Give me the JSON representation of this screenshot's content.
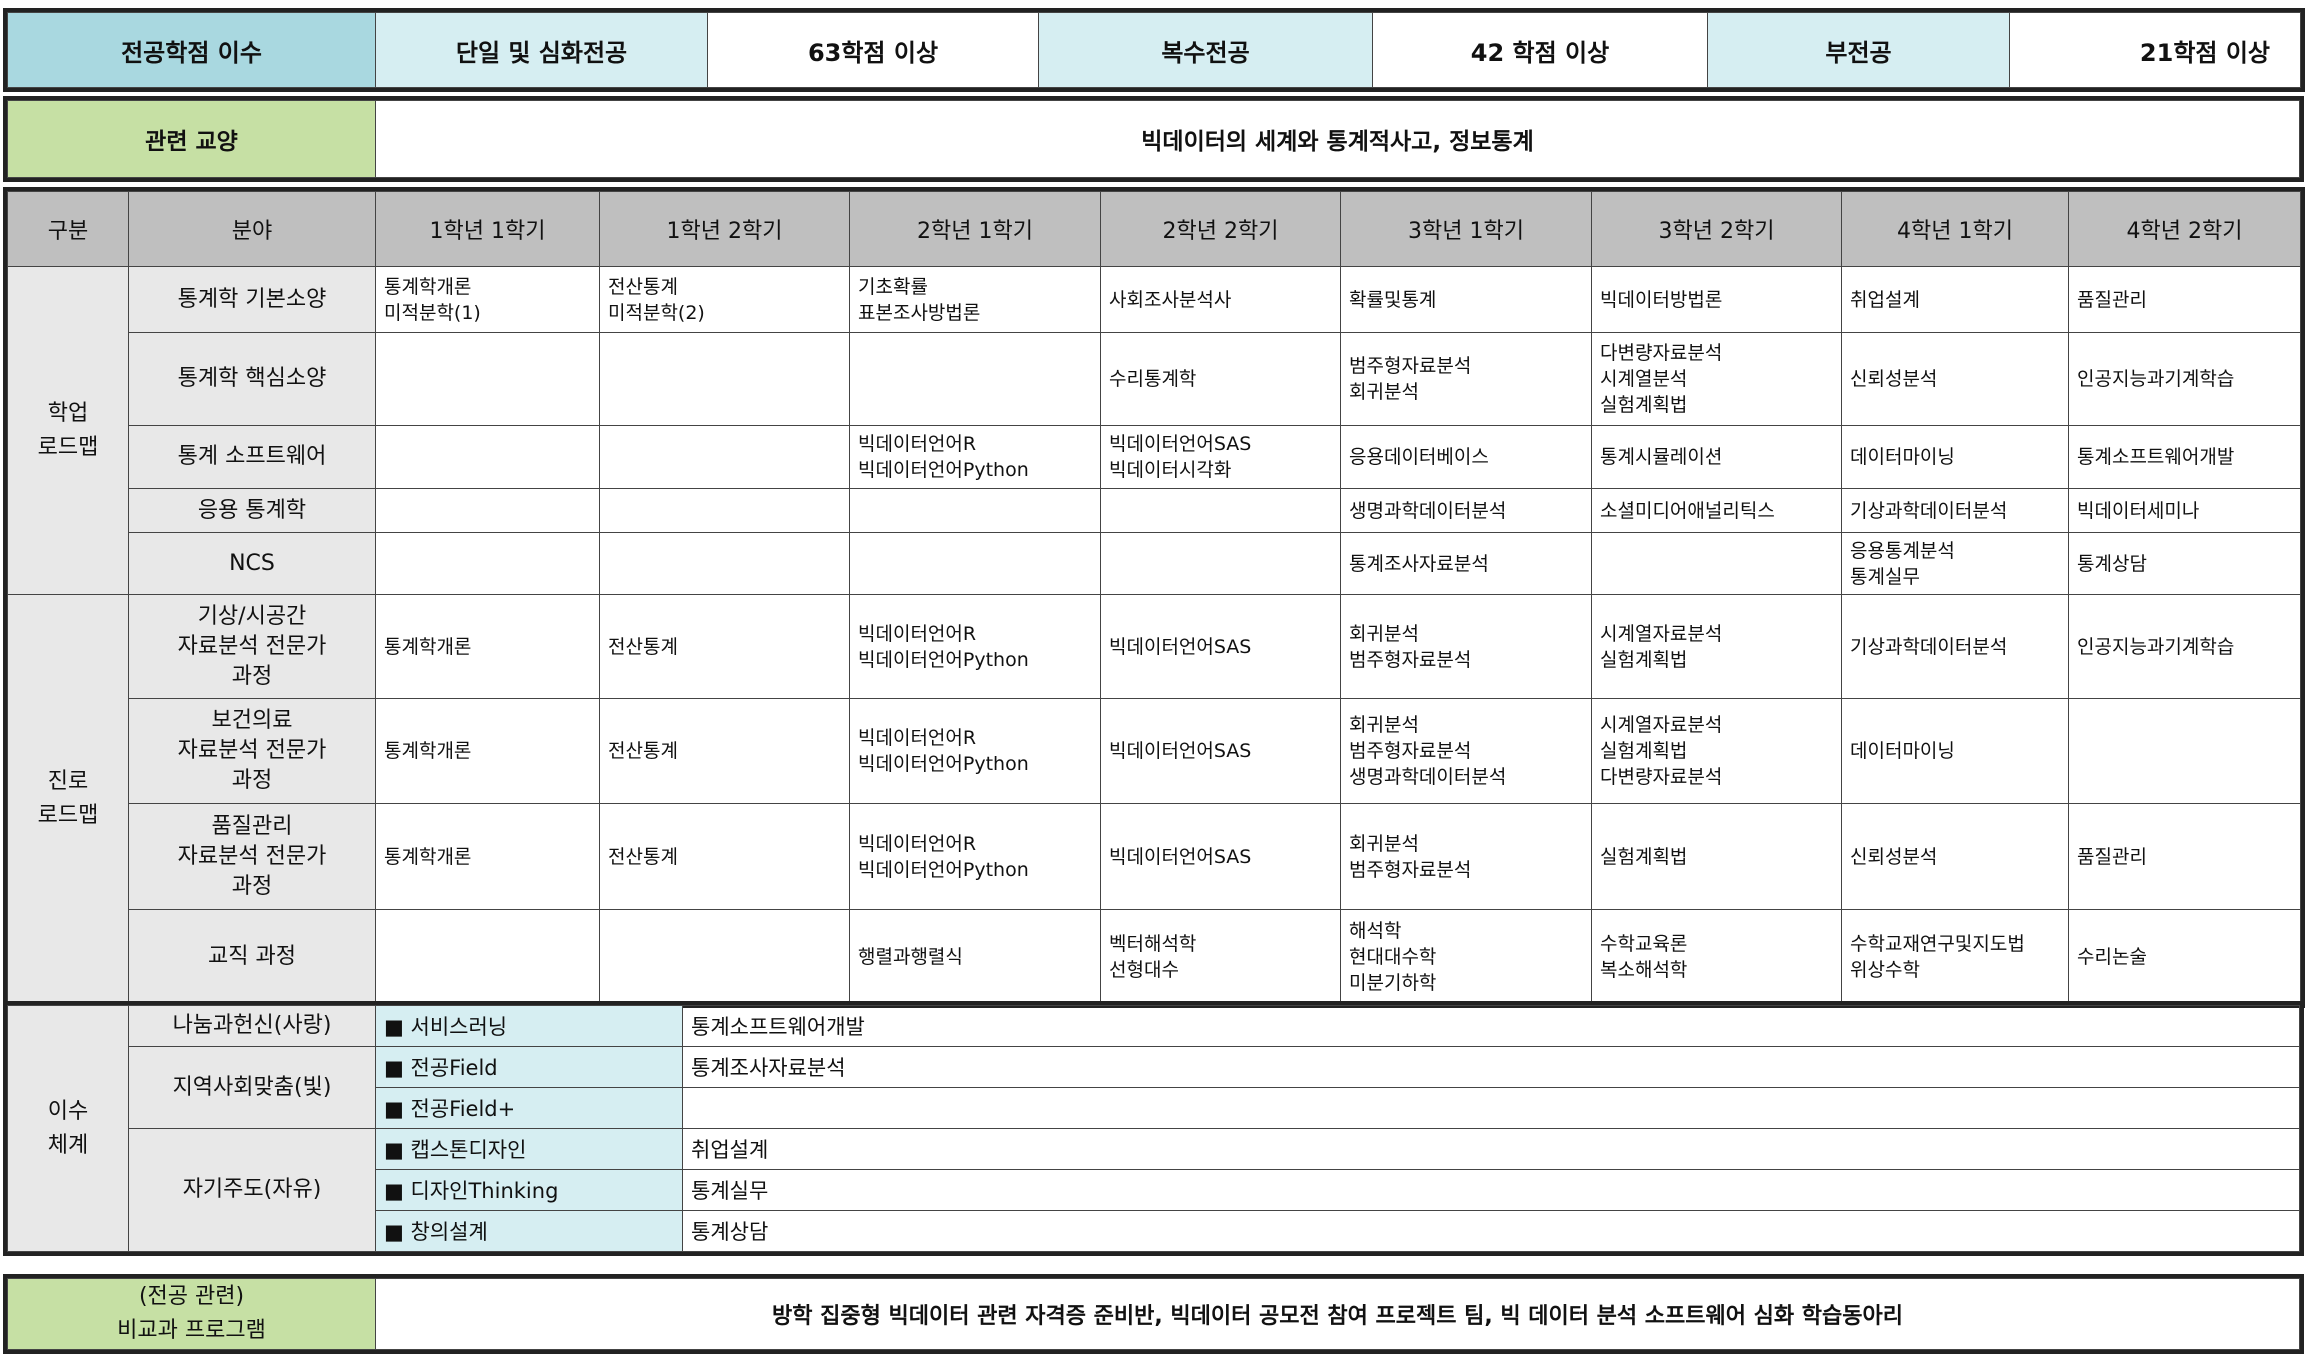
{
  "credits": {
    "label": "전공학점 이수",
    "items": [
      {
        "type": "단일 및 심화전공",
        "value": "63학점 이상"
      },
      {
        "type": "복수전공",
        "value": "42 학점 이상"
      },
      {
        "type": "부전공",
        "value": "21학점 이상"
      }
    ]
  },
  "liberal": {
    "label": "관련 교양",
    "value": "빅데이터의 세계와 통계적사고, 정보통계"
  },
  "roadmap": {
    "headers": [
      "구분",
      "분야",
      "1학년 1학기",
      "1학년 2학기",
      "2학년 1학기",
      "2학년 2학기",
      "3학년 1학기",
      "3학년 2학기",
      "4학년 1학기",
      "4학년 2학기"
    ],
    "groups": [
      {
        "category": [
          "학업",
          "로드맵"
        ],
        "rows": [
          {
            "field": [
              "통계학 기본소양"
            ],
            "cells": [
              [
                "통계학개론",
                "미적분학(1)"
              ],
              [
                "전산통계",
                "미적분학(2)"
              ],
              [
                "기초확률",
                "표본조사방법론"
              ],
              [
                "사회조사분석사"
              ],
              [
                "확률및통계"
              ],
              [
                "빅데이터방법론"
              ],
              [
                "취업설계"
              ],
              [
                "품질관리"
              ]
            ]
          },
          {
            "field": [
              "통계학 핵심소양"
            ],
            "cells": [
              [],
              [],
              [],
              [
                "수리통계학"
              ],
              [
                "범주형자료분석",
                "회귀분석"
              ],
              [
                "다변량자료분석",
                "시계열분석",
                "실험계획법"
              ],
              [
                "신뢰성분석"
              ],
              [
                "인공지능과기계학습"
              ]
            ]
          },
          {
            "field": [
              "통계 소프트웨어"
            ],
            "cells": [
              [],
              [],
              [
                "빅데이터언어R",
                "빅데이터언어Python"
              ],
              [
                "빅데이터언어SAS",
                "빅데이터시각화"
              ],
              [
                "응용데이터베이스"
              ],
              [
                "통계시뮬레이션"
              ],
              [
                "데이터마이닝"
              ],
              [
                "통계소프트웨어개발"
              ]
            ]
          },
          {
            "field": [
              "응용 통계학"
            ],
            "cells": [
              [],
              [],
              [],
              [],
              [
                "생명과학데이터분석"
              ],
              [
                "소셜미디어애널리틱스"
              ],
              [
                "기상과학데이터분석"
              ],
              [
                "빅데이터세미나"
              ]
            ]
          },
          {
            "field": [
              "NCS"
            ],
            "cells": [
              [],
              [],
              [],
              [],
              [
                "통계조사자료분석"
              ],
              [],
              [
                "응용통계분석",
                "통계실무"
              ],
              [
                "통계상담"
              ]
            ]
          }
        ]
      },
      {
        "category": [
          "진로",
          "로드맵"
        ],
        "rows": [
          {
            "field": [
              "기상/시공간",
              "자료분석 전문가",
              "과정"
            ],
            "cells": [
              [
                "통계학개론"
              ],
              [
                "전산통계"
              ],
              [
                "빅데이터언어R",
                "빅데이터언어Python"
              ],
              [
                "빅데이터언어SAS"
              ],
              [
                "회귀분석",
                "범주형자료분석"
              ],
              [
                "시계열자료분석",
                "실험계획법"
              ],
              [
                "기상과학데이터분석"
              ],
              [
                "인공지능과기계학습"
              ]
            ]
          },
          {
            "field": [
              "보건의료",
              "자료분석 전문가",
              "과정"
            ],
            "cells": [
              [
                "통계학개론"
              ],
              [
                "전산통계"
              ],
              [
                "빅데이터언어R",
                "빅데이터언어Python"
              ],
              [
                "빅데이터언어SAS"
              ],
              [
                "회귀분석",
                "범주형자료분석",
                "생명과학데이터분석"
              ],
              [
                "시계열자료분석",
                "실험계획법",
                "다변량자료분석"
              ],
              [
                "데이터마이닝"
              ],
              []
            ]
          },
          {
            "field": [
              "품질관리",
              "자료분석 전문가",
              "과정"
            ],
            "cells": [
              [
                "통계학개론"
              ],
              [
                "전산통계"
              ],
              [
                "빅데이터언어R",
                "빅데이터언어Python"
              ],
              [
                "빅데이터언어SAS"
              ],
              [
                "회귀분석",
                "범주형자료분석"
              ],
              [
                "실험계획법"
              ],
              [
                "신뢰성분석"
              ],
              [
                "품질관리"
              ]
            ]
          },
          {
            "field": [
              "교직 과정"
            ],
            "cells": [
              [],
              [],
              [
                "행렬과행렬식"
              ],
              [
                "벡터해석학",
                "선형대수"
              ],
              [
                "해석학",
                "현대대수학",
                "미분기하학"
              ],
              [
                "수학교육론",
                "복소해석학"
              ],
              [
                "수학교재연구및지도법",
                "위상수학"
              ],
              [
                "수리논술"
              ]
            ]
          }
        ]
      }
    ]
  },
  "track": {
    "category": [
      "이수",
      "체계"
    ],
    "groups": [
      {
        "label": "나눔과헌신(사랑)",
        "items": [
          {
            "program": "■ 서비스러닝",
            "course": "통계소프트웨어개발"
          }
        ]
      },
      {
        "label": "지역사회맞춤(빛)",
        "items": [
          {
            "program": "■ 전공Field",
            "course": "통계조사자료분석"
          },
          {
            "program": "■ 전공Field+",
            "course": ""
          }
        ]
      },
      {
        "label": "자기주도(자유)",
        "items": [
          {
            "program": "■ 캡스톤디자인",
            "course": "취업설계"
          },
          {
            "program": "■ 디자인Thinking",
            "course": "통계실무"
          },
          {
            "program": "■ 창의설계",
            "course": "통계상담"
          }
        ]
      }
    ]
  },
  "extra": {
    "label": [
      "(전공 관련)",
      "비교과 프로그램"
    ],
    "value": "방학 집중형 빅데이터 관련 자격증 준비반, 빅데이터 공모전 참여 프로젝트 팀, 빅 데이터 분석 소프트웨어 심화 학습동아리"
  },
  "colors": {
    "header_gray": "#bfbfbf",
    "credit_dark": "#a9d8e0",
    "credit_light": "#d6eef2",
    "green": "#c6e0a4",
    "label_gray": "#e8e8e8"
  }
}
